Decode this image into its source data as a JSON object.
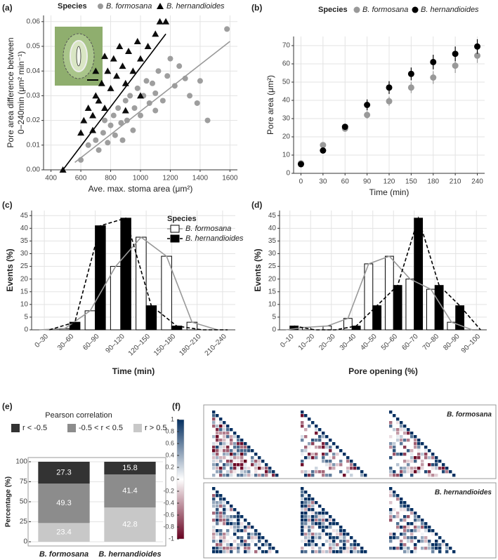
{
  "chart_data": [
    {
      "type": "scatter",
      "label": "(a)",
      "legend_title": "Species",
      "xlabel": "Ave. max. stoma area (μm²)",
      "ylabel": [
        "Pore area difference between",
        "0−240min (μm² min⁻¹)"
      ],
      "xlim": [
        350,
        1650
      ],
      "xticks": [
        400,
        600,
        800,
        1000,
        1200,
        1400,
        1600
      ],
      "ylim": [
        0,
        0.0625
      ],
      "yticks": [
        {
          "value": 0,
          "label": "0.00"
        },
        0.01,
        0.02,
        0.03,
        0.04,
        0.05,
        0.06
      ],
      "grid": true,
      "series": [
        {
          "name": "B. formosana",
          "color": "#999999",
          "marker": "circle",
          "x": [
            600,
            650,
            700,
            720,
            750,
            760,
            780,
            800,
            820,
            830,
            850,
            870,
            880,
            900,
            910,
            930,
            950,
            960,
            980,
            1000,
            1020,
            1040,
            1060,
            1080,
            1100,
            1100,
            1120,
            1150,
            1180,
            1200,
            1230,
            1260,
            1300,
            1330,
            1380,
            1400,
            1450,
            1580
          ],
          "values": [
            0.004,
            0.01,
            0.012,
            0.008,
            0.015,
            0.02,
            0.011,
            0.018,
            0.022,
            0.014,
            0.025,
            0.019,
            0.012,
            0.028,
            0.02,
            0.03,
            0.016,
            0.025,
            0.033,
            0.022,
            0.03,
            0.036,
            0.027,
            0.035,
            0.031,
            0.024,
            0.04,
            0.028,
            0.038,
            0.045,
            0.034,
            0.042,
            0.037,
            0.03,
            0.027,
            0.036,
            0.02,
            0.057
          ],
          "fit": {
            "x": [
              560,
              1600
            ],
            "values": [
              0.003,
              0.052
            ]
          }
        },
        {
          "name": "B. hernandioides",
          "color": "#000000",
          "marker": "triangle",
          "x": [
            480,
            600,
            620,
            650,
            680,
            680,
            700,
            700,
            720,
            740,
            760,
            760,
            780,
            800,
            820,
            840,
            860,
            880,
            900,
            900,
            920,
            950,
            980,
            1000,
            1000,
            1050,
            1100,
            1130,
            1170
          ],
          "values": [
            0,
            0.015,
            0.02,
            0.025,
            0.022,
            0.016,
            0.03,
            0.04,
            0.028,
            0.035,
            0.025,
            0.046,
            0.04,
            0.033,
            0.045,
            0.038,
            0.05,
            0.042,
            0.035,
            0.024,
            0.048,
            0.04,
            0.052,
            0.045,
            0.03,
            0.05,
            0.055,
            0.06,
            0.06
          ],
          "fit": {
            "x": [
              480,
              1170
            ],
            "values": [
              0,
              0.055
            ]
          }
        }
      ]
    },
    {
      "type": "errorbar",
      "label": "(b)",
      "legend_title": "Species",
      "xlabel": "Time (min)",
      "ylabel": "Pore area (μm²)",
      "x": [
        0,
        30,
        60,
        90,
        120,
        150,
        180,
        210,
        240
      ],
      "xlim": [
        -10,
        250
      ],
      "xticks": [
        0,
        30,
        60,
        90,
        120,
        150,
        180,
        210,
        240
      ],
      "ylim": [
        0,
        75
      ],
      "yticks": [
        0,
        10,
        20,
        30,
        40,
        50,
        60,
        70
      ],
      "grid": true,
      "series": [
        {
          "name": "B. formosana",
          "color": "#999999",
          "values": [
            5.5,
            15.5,
            24.5,
            32,
            39.5,
            47,
            52.5,
            59,
            64.5
          ],
          "errors": [
            1,
            1,
            1.5,
            2,
            2.5,
            3,
            3.5,
            4,
            4
          ]
        },
        {
          "name": "B. hernandioides",
          "color": "#000000",
          "values": [
            5,
            12.5,
            25.5,
            37.5,
            47,
            54.5,
            61,
            65.5,
            69.5
          ],
          "errors": [
            1,
            1,
            1.5,
            3,
            3.5,
            3.5,
            4,
            4,
            4
          ]
        }
      ]
    },
    {
      "type": "bar",
      "label": "(c)",
      "legend_title": "Species",
      "legend": "top right",
      "xlabel": "Time (min)",
      "ylabel": "Events (%)",
      "categories": [
        "0–30",
        "30–60",
        "60–90",
        "90–120",
        "120–150",
        "150–180",
        "180–210",
        "210–240"
      ],
      "ylim": [
        0,
        47
      ],
      "yticks": [
        0,
        5,
        10,
        15,
        20,
        25,
        30,
        35,
        40,
        45
      ],
      "grid": true,
      "series": [
        {
          "name": "B. formosana",
          "color": "#ffffff",
          "line_color": "#999999",
          "line_style": "solid",
          "values": [
            0,
            0.5,
            7.5,
            25,
            36.5,
            29,
            3,
            0
          ]
        },
        {
          "name": "B. hernandioides",
          "color": "#000000",
          "line_color": "#000000",
          "line_style": "dashed",
          "values": [
            0,
            3,
            41,
            44,
            9.5,
            1.5,
            0,
            0
          ]
        }
      ]
    },
    {
      "type": "bar",
      "label": "(d)",
      "xlabel": "Pore opening (%)",
      "ylabel": "Events (%)",
      "categories": [
        "0–10",
        "10–20",
        "20–30",
        "30–40",
        "40–50",
        "50–60",
        "60–70",
        "70–80",
        "80–90",
        "90–100"
      ],
      "ylim": [
        0,
        47
      ],
      "yticks": [
        0,
        5,
        10,
        15,
        20,
        25,
        30,
        35,
        40,
        45
      ],
      "grid": true,
      "series": [
        {
          "name": "B. formosana",
          "color": "#ffffff",
          "line_color": "#999999",
          "line_style": "solid",
          "values": [
            0,
            1,
            1.5,
            4.5,
            26,
            29,
            20,
            16,
            3,
            0
          ]
        },
        {
          "name": "B. hernandioides",
          "color": "#000000",
          "line_color": "#000000",
          "line_style": "dashed",
          "values": [
            1.5,
            0,
            0,
            1.5,
            9.5,
            17.5,
            44,
            17.5,
            9.5,
            0
          ]
        }
      ]
    },
    {
      "type": "stacked_bar",
      "label": "(e)",
      "legend_title": "Pearson correlation",
      "ylabel": "Percentage (%)",
      "categories": [
        "B. formosana",
        "B. hernandioides"
      ],
      "ylim": [
        0,
        100
      ],
      "yticks": [
        0,
        25,
        50,
        75,
        100
      ],
      "grid": true,
      "series": [
        {
          "name": "r < -0.5",
          "color": "#333333",
          "values": [
            27.3,
            15.8
          ]
        },
        {
          "name": "-0.5 < r < 0.5",
          "color": "#8c8c8c",
          "values": [
            49.3,
            41.4
          ]
        },
        {
          "name": "r > 0.5",
          "color": "#c8c8c8",
          "values": [
            23.4,
            42.8
          ]
        }
      ]
    },
    {
      "type": "heatmap",
      "label": "(f)",
      "panels": [
        "B. formosana",
        "B. hernandioides"
      ],
      "colorbar_lim": [
        -1,
        1
      ],
      "colorbar_ticks": [
        1,
        0.8,
        0.6,
        0.4,
        0.2,
        0,
        -0.2,
        -0.4,
        -0.6,
        -0.8,
        -1
      ],
      "colorbar_colors": [
        "#67001f",
        "#ffffff",
        "#053061"
      ]
    }
  ]
}
